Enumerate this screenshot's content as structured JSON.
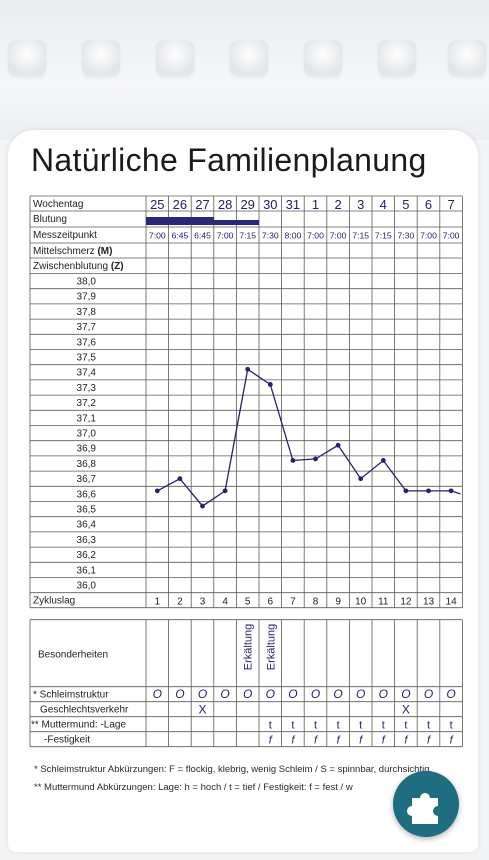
{
  "title": "Natürliche Familienplanung",
  "rows": {
    "weekday": "Wochentag",
    "bleeding": "Blutung",
    "time": "Messzeitpunkt",
    "mittelschmerz": "Mittelschmerz",
    "mittelschmerz_code": "(M)",
    "spotting": "Zwischenblutung",
    "spotting_code": "(Z)",
    "cycle_day": "Zykluslag",
    "special": "Besonderheiten",
    "mucus": "Schleimstruktur",
    "mucus_mark": "*",
    "intercourse": "Geschlechtsverkehr",
    "cervix_position": "Muttermund: -Lage",
    "cervix_mark": "**",
    "cervix_firmness": "-Festigkeit"
  },
  "dates": [
    "25",
    "26",
    "27",
    "28",
    "29",
    "30",
    "31",
    "1",
    "2",
    "3",
    "4",
    "5",
    "6",
    "7"
  ],
  "times": [
    "7:00",
    "6:45",
    "6:45",
    "7:00",
    "7:15",
    "7:30",
    "8:00",
    "7:00",
    "7:00",
    "7:15",
    "7:15",
    "7:30",
    "7:00",
    "7:00"
  ],
  "bleeding_days": [
    1,
    2,
    3,
    4,
    5
  ],
  "temp_labels": [
    "38,0",
    "37,9",
    "37,8",
    "37,7",
    "37,6",
    "37,5",
    "37,4",
    "37,3",
    "37,2",
    "37,1",
    "37,0",
    "36,9",
    "36,8",
    "36,7",
    "36,6",
    "36,5",
    "36,4",
    "36,3",
    "36,2",
    "36,1",
    "36,0"
  ],
  "cycle_days": [
    "1",
    "2",
    "3",
    "4",
    "5",
    "6",
    "7",
    "8",
    "9",
    "10",
    "11",
    "12",
    "13",
    "14"
  ],
  "special_notes": [
    "",
    "",
    "",
    "",
    "Erkältung",
    "Erkältung",
    "",
    "",
    "",
    "",
    "",
    "",
    "",
    ""
  ],
  "mucus": [
    "O",
    "O",
    "O",
    "O",
    "O",
    "O",
    "O",
    "O",
    "O",
    "O",
    "O",
    "O",
    "O",
    "O"
  ],
  "intercourse": [
    "",
    "",
    "X",
    "",
    "",
    "",
    "",
    "",
    "",
    "",
    "",
    "X",
    "",
    ""
  ],
  "cervix_position": [
    "",
    "",
    "",
    "",
    "",
    "t",
    "t",
    "t",
    "t",
    "t",
    "t",
    "t",
    "t",
    "t"
  ],
  "cervix_firmness": [
    "",
    "",
    "",
    "",
    "",
    "f",
    "f",
    "f",
    "f",
    "f",
    "f",
    "f",
    "f",
    "f"
  ],
  "footnotes": [
    "* Schleimstruktur Abkürzungen:   F = flockig, klebrig, wenig Schleim  /  S = spinnbar, durchsichtig,",
    "** Muttermund Abkürzungen:           Lage: h = hoch  /  t = tief  /  Festigkeit: f = fest  /  w"
  ],
  "colors": {
    "ink": "#24226a",
    "bleeding": "#2b2878",
    "grid": "#5a5a5a",
    "accent": "#1f6d80"
  },
  "chart_data": {
    "type": "line",
    "title": "",
    "xlabel": "Zykluslag",
    "ylabel": "",
    "ylim": [
      36.0,
      38.0
    ],
    "x": [
      1,
      2,
      3,
      4,
      5,
      6,
      7,
      8,
      9,
      10,
      11,
      12,
      13,
      14
    ],
    "series": [
      {
        "values": [
          36.62,
          36.7,
          36.52,
          36.62,
          37.42,
          37.32,
          36.82,
          36.83,
          36.92,
          36.7,
          36.82,
          36.62,
          36.62,
          36.62
        ]
      }
    ],
    "trailing_value": 36.6,
    "grid": true
  }
}
